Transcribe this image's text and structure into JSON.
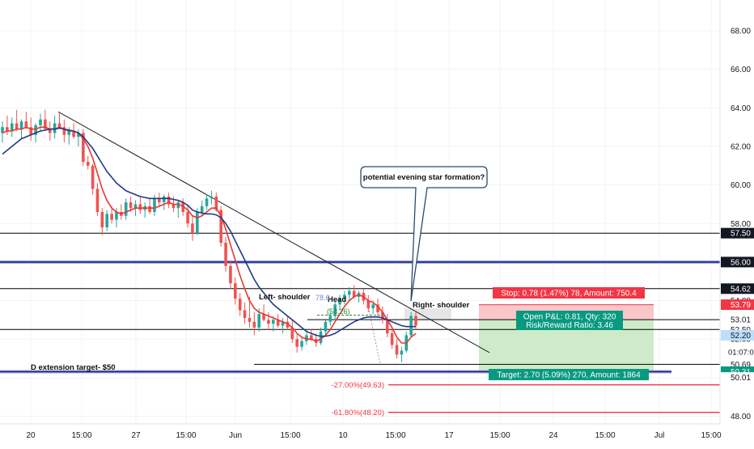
{
  "chart_data": {
    "type": "candlestick",
    "title": "",
    "ylim": [
      47.6,
      69.6
    ],
    "grid": true,
    "y_ticks": [
      48.0,
      50.0,
      52.0,
      54.0,
      56.0,
      58.0,
      60.0,
      62.0,
      64.0,
      66.0,
      68.0
    ],
    "y_tick_labels": [
      "48.00",
      "50.00",
      "52.00",
      "54.00",
      "56.00",
      "58.00",
      "60.00",
      "62.00",
      "64.00",
      "66.00",
      "68.00"
    ],
    "x_ticks": [
      {
        "label": "20",
        "t": 38
      },
      {
        "label": "15:00",
        "t": 101
      },
      {
        "label": "27",
        "t": 168
      },
      {
        "label": "15:00",
        "t": 230
      },
      {
        "label": "Jun",
        "t": 291
      },
      {
        "label": "15:00",
        "t": 359
      },
      {
        "label": "10",
        "t": 424
      },
      {
        "label": "15:00",
        "t": 489
      },
      {
        "label": "17",
        "t": 555
      },
      {
        "label": "15:00",
        "t": 618
      },
      {
        "label": "24",
        "t": 684
      },
      {
        "label": "15:00",
        "t": 748
      },
      {
        "label": "Jul",
        "t": 815
      },
      {
        "label": "15:00",
        "t": 879
      }
    ],
    "ohlc": [
      [
        62.7,
        63.3,
        62.2,
        63.0
      ],
      [
        63.0,
        63.6,
        62.6,
        62.8
      ],
      [
        62.8,
        63.5,
        62.5,
        63.2
      ],
      [
        63.2,
        63.9,
        62.8,
        62.9
      ],
      [
        62.9,
        63.4,
        62.4,
        63.3
      ],
      [
        63.3,
        63.8,
        62.9,
        63.0
      ],
      [
        63.0,
        63.5,
        62.3,
        62.6
      ],
      [
        62.6,
        63.2,
        62.2,
        63.1
      ],
      [
        63.1,
        63.7,
        62.8,
        63.4
      ],
      [
        63.4,
        63.9,
        63.0,
        62.9
      ],
      [
        62.9,
        63.3,
        62.3,
        62.7
      ],
      [
        62.7,
        63.6,
        62.4,
        63.2
      ],
      [
        63.2,
        63.8,
        62.9,
        63.0
      ],
      [
        63.0,
        63.4,
        62.2,
        62.6
      ],
      [
        62.6,
        63.0,
        62.1,
        62.8
      ],
      [
        62.8,
        63.2,
        62.4,
        62.5
      ],
      [
        62.5,
        62.9,
        62.0,
        62.7
      ],
      [
        62.7,
        62.9,
        61.0,
        61.2
      ],
      [
        61.2,
        61.5,
        60.8,
        61.0
      ],
      [
        61.0,
        61.1,
        59.5,
        59.8
      ],
      [
        59.8,
        60.1,
        58.4,
        58.6
      ],
      [
        58.6,
        58.8,
        57.4,
        57.8
      ],
      [
        57.8,
        58.7,
        57.6,
        58.5
      ],
      [
        58.5,
        58.9,
        58.0,
        58.2
      ],
      [
        58.2,
        58.8,
        57.8,
        58.6
      ],
      [
        58.6,
        59.0,
        58.2,
        58.4
      ],
      [
        58.4,
        59.3,
        58.2,
        59.1
      ],
      [
        59.1,
        59.4,
        58.6,
        58.8
      ],
      [
        58.8,
        59.2,
        58.4,
        59.0
      ],
      [
        59.0,
        59.4,
        58.5,
        58.7
      ],
      [
        58.7,
        59.1,
        58.3,
        58.9
      ],
      [
        58.9,
        59.3,
        58.5,
        58.6
      ],
      [
        58.6,
        59.5,
        58.4,
        59.3
      ],
      [
        59.3,
        59.6,
        58.9,
        59.1
      ],
      [
        59.1,
        59.5,
        58.7,
        59.4
      ],
      [
        59.4,
        59.6,
        58.8,
        59.0
      ],
      [
        59.0,
        59.4,
        58.6,
        58.8
      ],
      [
        58.8,
        59.2,
        58.3,
        59.1
      ],
      [
        59.1,
        59.3,
        58.4,
        58.6
      ],
      [
        58.6,
        59.0,
        57.8,
        58.0
      ],
      [
        58.0,
        58.4,
        57.1,
        57.5
      ],
      [
        57.5,
        58.8,
        57.4,
        58.6
      ],
      [
        58.6,
        59.2,
        58.4,
        58.9
      ],
      [
        58.9,
        59.5,
        58.7,
        59.3
      ],
      [
        59.3,
        59.7,
        59.0,
        59.4
      ],
      [
        59.4,
        59.6,
        58.6,
        58.7
      ],
      [
        58.7,
        58.9,
        56.8,
        57.0
      ],
      [
        57.0,
        57.3,
        55.5,
        55.8
      ],
      [
        55.8,
        56.1,
        54.6,
        54.9
      ],
      [
        54.9,
        55.2,
        53.8,
        54.1
      ],
      [
        54.1,
        54.4,
        53.2,
        53.5
      ],
      [
        53.5,
        53.9,
        52.8,
        53.1
      ],
      [
        53.1,
        54.2,
        52.6,
        52.9
      ],
      [
        52.9,
        53.4,
        52.2,
        52.6
      ],
      [
        52.6,
        53.6,
        52.4,
        53.3
      ],
      [
        53.3,
        53.8,
        52.9,
        53.0
      ],
      [
        53.0,
        53.4,
        52.5,
        52.8
      ],
      [
        52.8,
        53.2,
        52.4,
        53.0
      ],
      [
        53.0,
        53.3,
        52.6,
        52.7
      ],
      [
        52.7,
        53.1,
        52.3,
        52.9
      ],
      [
        52.9,
        53.2,
        52.5,
        52.6
      ],
      [
        52.6,
        53.0,
        51.8,
        52.0
      ],
      [
        52.0,
        52.3,
        51.3,
        51.6
      ],
      [
        51.6,
        52.1,
        51.4,
        51.9
      ],
      [
        51.9,
        52.4,
        51.7,
        52.2
      ],
      [
        52.2,
        52.5,
        51.9,
        52.0
      ],
      [
        52.0,
        52.3,
        51.6,
        51.8
      ],
      [
        51.8,
        52.6,
        51.7,
        52.4
      ],
      [
        52.4,
        53.0,
        52.2,
        52.9
      ],
      [
        52.9,
        53.4,
        52.7,
        53.2
      ],
      [
        53.2,
        54.0,
        53.0,
        53.8
      ],
      [
        53.8,
        54.3,
        53.5,
        54.1
      ],
      [
        54.1,
        54.5,
        53.8,
        54.3
      ],
      [
        54.3,
        54.7,
        54.0,
        54.5
      ],
      [
        54.5,
        54.8,
        54.1,
        54.2
      ],
      [
        54.2,
        54.5,
        53.9,
        54.4
      ],
      [
        54.4,
        54.6,
        53.8,
        54.0
      ],
      [
        54.0,
        54.3,
        53.4,
        53.6
      ],
      [
        53.6,
        54.0,
        53.3,
        53.8
      ],
      [
        53.8,
        54.1,
        53.2,
        53.4
      ],
      [
        53.4,
        53.7,
        52.8,
        53.0
      ],
      [
        53.0,
        53.3,
        52.1,
        52.3
      ],
      [
        52.3,
        52.6,
        51.5,
        51.7
      ],
      [
        51.7,
        52.0,
        51.0,
        51.2
      ],
      [
        51.2,
        51.6,
        50.8,
        51.4
      ],
      [
        51.4,
        52.4,
        51.3,
        52.2
      ],
      [
        52.2,
        53.4,
        52.1,
        53.2
      ],
      [
        53.2,
        53.4,
        52.5,
        52.7
      ]
    ],
    "series": [
      {
        "type": "line",
        "color": "#e53935",
        "values": [
          62.7,
          62.8,
          62.8,
          62.9,
          62.9,
          63.0,
          62.9,
          62.9,
          63.0,
          63.0,
          62.9,
          62.9,
          63.0,
          62.9,
          62.8,
          62.8,
          62.7,
          62.4,
          62.0,
          61.4,
          60.6,
          59.8,
          59.2,
          58.8,
          58.6,
          58.5,
          58.6,
          58.7,
          58.8,
          58.8,
          58.8,
          58.8,
          58.8,
          58.9,
          59.0,
          59.1,
          59.0,
          59.0,
          58.9,
          58.7,
          58.4,
          58.3,
          58.4,
          58.6,
          58.8,
          58.8,
          58.4,
          57.7,
          56.9,
          56.1,
          55.3,
          54.6,
          54.0,
          53.6,
          53.4,
          53.3,
          53.2,
          53.1,
          53.0,
          52.9,
          52.8,
          52.6,
          52.3,
          52.1,
          52.0,
          52.0,
          51.9,
          52.0,
          52.2,
          52.5,
          52.9,
          53.3,
          53.7,
          54.0,
          54.2,
          54.3,
          54.2,
          54.0,
          53.9,
          53.7,
          53.4,
          53.0,
          52.6,
          52.1,
          51.8,
          51.8,
          52.1,
          52.3
        ]
      },
      {
        "type": "line",
        "color": "#1e3a8a",
        "values": [
          61.6,
          61.8,
          62.0,
          62.2,
          62.4,
          62.5,
          62.6,
          62.7,
          62.8,
          62.85,
          62.9,
          62.9,
          62.95,
          62.9,
          62.85,
          62.8,
          62.7,
          62.5,
          62.2,
          61.9,
          61.5,
          61.1,
          60.7,
          60.4,
          60.1,
          59.9,
          59.7,
          59.6,
          59.5,
          59.4,
          59.35,
          59.3,
          59.3,
          59.3,
          59.3,
          59.3,
          59.25,
          59.2,
          59.1,
          58.95,
          58.7,
          58.6,
          58.55,
          58.5,
          58.5,
          58.45,
          58.3,
          58.0,
          57.6,
          57.1,
          56.6,
          56.1,
          55.6,
          55.1,
          54.7,
          54.4,
          54.1,
          53.8,
          53.6,
          53.4,
          53.2,
          53.0,
          52.8,
          52.6,
          52.4,
          52.3,
          52.2,
          52.15,
          52.15,
          52.2,
          52.3,
          52.45,
          52.6,
          52.75,
          52.9,
          53.0,
          53.1,
          53.15,
          53.15,
          53.15,
          53.1,
          53.0,
          52.9,
          52.8,
          52.7,
          52.65,
          52.65,
          52.65
        ]
      }
    ],
    "levels": [
      {
        "value": 57.5,
        "label": "57.50",
        "color": "#000000"
      },
      {
        "value": 56.0,
        "label": "56.00",
        "color": "#1a237e"
      },
      {
        "value": 54.62,
        "label": "54.62",
        "color": "#000000"
      },
      {
        "value": 53.79,
        "label": "53.79",
        "color": "#f23645"
      },
      {
        "value": 53.01,
        "label": "53.01",
        "color": "#000000"
      },
      {
        "value": 52.5,
        "label": "52.50",
        "color": "#000000"
      },
      {
        "value": 52.2,
        "label": "52.20",
        "color": "#000000"
      },
      {
        "value": 50.69,
        "label": "50.69",
        "color": "#000000"
      },
      {
        "value": 50.31,
        "label": "50.31",
        "color": "#089981"
      },
      {
        "value": 50.01,
        "label": "50.01",
        "color": "#000000"
      },
      {
        "value": 49.63,
        "label": "-27.00%(49.63)",
        "color": "#f23645"
      },
      {
        "value": 48.2,
        "label": "-61.80%(48.20)",
        "color": "#f23645"
      }
    ],
    "annotations": {
      "callout": "potential evening star formation?",
      "head": "Head",
      "left_shoulder": "Left- shoulder",
      "right_shoulder": "Right- shoulder",
      "d_extension": "D extension target- $50",
      "fib_786": "78.6",
      "fib_5326": "(53.26)",
      "stop": "Stop: 0.78 (1.47%) 78, Amount: 750.4",
      "open_pnl": "Open P&L: 0.81, Qty: 320",
      "risk_reward": "Risk/Reward Ratio: 3.46",
      "target": "Target: 2.70 (5.09%) 270, Amount: 1864",
      "countdown": "01:07:0"
    }
  },
  "colors": {
    "up": "#26a69a",
    "down": "#ef5350",
    "stop_zone": "#f9c6c9",
    "target_zone": "#cdebc8",
    "navy": "#1a237e",
    "current_price": "#bbdefb"
  }
}
